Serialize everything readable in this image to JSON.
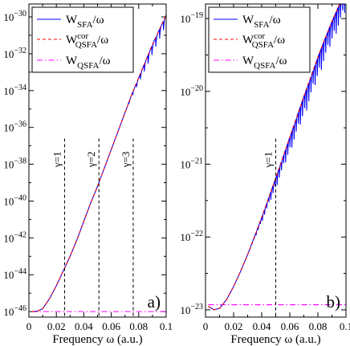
{
  "chart_data": [
    {
      "type": "line",
      "panel_label": "a)",
      "xlabel": "Frequency ω (a.u.)",
      "ylabel": "",
      "xlim": [
        0,
        0.1
      ],
      "ylim_log10": [
        -46.3,
        -29.3
      ],
      "y_scale": "log",
      "x_ticks": [
        "0",
        "0.02",
        "0.04",
        "0.06",
        "0.08",
        "0.1"
      ],
      "y_ticks": [
        "10^-30",
        "10^-32",
        "10^-34",
        "10^-36",
        "10^-38",
        "10^-40",
        "10^-42",
        "10^-44",
        "10^-46"
      ],
      "legend_position": "top-left",
      "series": [
        {
          "name": "W_SFA/ω",
          "color": "#0000ff",
          "style": "solid",
          "x": [
            0.002,
            0.006,
            0.01,
            0.015,
            0.02,
            0.025,
            0.03,
            0.035,
            0.04,
            0.045,
            0.05,
            0.055,
            0.06,
            0.065,
            0.07,
            0.075,
            0.08,
            0.085,
            0.09,
            0.095,
            0.1
          ],
          "log10_y": [
            -46.0,
            -45.98,
            -45.85,
            -45.3,
            -44.6,
            -43.8,
            -43.0,
            -42.1,
            -41.1,
            -40.1,
            -39.2,
            -38.2,
            -37.2,
            -36.2,
            -35.2,
            -34.2,
            -33.3,
            -32.4,
            -31.5,
            -30.7,
            -29.9
          ],
          "oscillation": {
            "x_range": [
              0.07,
              0.1
            ],
            "depth_decades": 0.55,
            "period": 0.0028
          }
        },
        {
          "name": "W_QSFA^cor/ω",
          "color": "#ff0000",
          "style": "dashed",
          "x": [
            0.002,
            0.006,
            0.01,
            0.015,
            0.02,
            0.025,
            0.03,
            0.035,
            0.04,
            0.045,
            0.05,
            0.055,
            0.06,
            0.065,
            0.07,
            0.075,
            0.08,
            0.085,
            0.09,
            0.095,
            0.1
          ],
          "log10_y": [
            -46.0,
            -45.98,
            -45.85,
            -45.3,
            -44.6,
            -43.8,
            -43.0,
            -42.1,
            -41.1,
            -40.1,
            -39.2,
            -38.2,
            -37.2,
            -36.2,
            -35.2,
            -34.2,
            -33.3,
            -32.4,
            -31.5,
            -30.7,
            -29.9
          ]
        },
        {
          "name": "W_QSFA/ω",
          "color": "#ff00ff",
          "style": "dash-dot",
          "x": [
            0.002,
            0.1
          ],
          "log10_y": [
            -46.0,
            -46.0
          ]
        }
      ],
      "annotations": [
        {
          "x": 0.026,
          "label": "γ=1",
          "line_top_log10": -36.6
        },
        {
          "x": 0.051,
          "label": "γ=2",
          "line_top_log10": -36.6
        },
        {
          "x": 0.076,
          "label": "γ=3",
          "line_top_log10": -36.6
        }
      ]
    },
    {
      "type": "line",
      "panel_label": "b)",
      "xlabel": "Frequency ω (a.u.)",
      "ylabel": "",
      "xlim": [
        0,
        0.1
      ],
      "ylim_log10": [
        -23.1,
        -18.8
      ],
      "y_scale": "log",
      "x_ticks": [
        "0",
        "0.02",
        "0.04",
        "0.06",
        "0.08",
        "0.1"
      ],
      "y_ticks": [
        "10^-19",
        "10^-20",
        "10^-21",
        "10^-22",
        "10^-23"
      ],
      "legend_position": "top-left",
      "series": [
        {
          "name": "W_SFA/ω",
          "color": "#0000ff",
          "style": "solid",
          "x": [
            0.002,
            0.006,
            0.01,
            0.015,
            0.02,
            0.025,
            0.03,
            0.035,
            0.04,
            0.045,
            0.05,
            0.055,
            0.06,
            0.065,
            0.07,
            0.075,
            0.08,
            0.085,
            0.09,
            0.095,
            0.1
          ],
          "log10_y": [
            -22.95,
            -23.0,
            -22.98,
            -22.86,
            -22.68,
            -22.47,
            -22.24,
            -21.99,
            -21.73,
            -21.46,
            -21.19,
            -20.91,
            -20.63,
            -20.35,
            -20.07,
            -19.8,
            -19.53,
            -19.28,
            -19.04,
            -18.82,
            -18.6
          ],
          "oscillation": {
            "x_range": [
              0.03,
              0.1
            ],
            "depth_decades": 0.3,
            "period": 0.0015
          }
        },
        {
          "name": "W_QSFA^cor/ω",
          "color": "#ff0000",
          "style": "dashed",
          "x": [
            0.002,
            0.006,
            0.01,
            0.015,
            0.02,
            0.025,
            0.03,
            0.035,
            0.04,
            0.045,
            0.05,
            0.055,
            0.06,
            0.065,
            0.07,
            0.075,
            0.08,
            0.085,
            0.09,
            0.095,
            0.1
          ],
          "log10_y": [
            -22.95,
            -23.0,
            -22.98,
            -22.86,
            -22.68,
            -22.47,
            -22.24,
            -21.99,
            -21.73,
            -21.46,
            -21.19,
            -20.91,
            -20.63,
            -20.35,
            -20.07,
            -19.8,
            -19.53,
            -19.28,
            -19.04,
            -18.82,
            -18.6
          ]
        },
        {
          "name": "W_QSFA/ω",
          "color": "#ff00ff",
          "style": "dash-dot",
          "x": [
            0.002,
            0.1
          ],
          "log10_y": [
            -22.93,
            -22.93
          ]
        }
      ],
      "annotations": [
        {
          "x": 0.05,
          "label": "γ=1",
          "line_top_log10": -20.65
        }
      ]
    }
  ]
}
